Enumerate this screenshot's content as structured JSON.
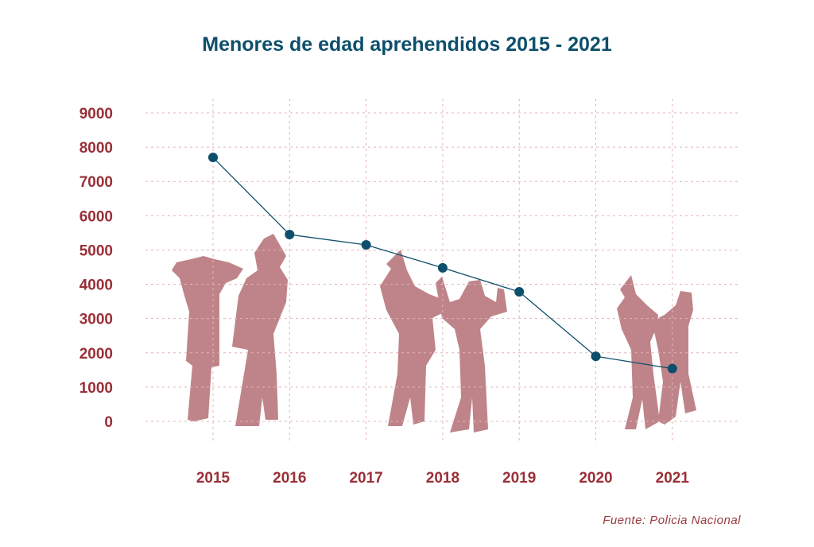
{
  "chart_data": {
    "type": "line",
    "title": "Menores de edad aprehendidos 2015 - 2021",
    "xlabel": "",
    "ylabel": "",
    "categories": [
      "2015",
      "2016",
      "2017",
      "2018",
      "2019",
      "2020",
      "2021"
    ],
    "series": [
      {
        "values": [
          7700,
          5450,
          5150,
          4480,
          3780,
          1900,
          1540
        ]
      }
    ],
    "yticks": [
      "0",
      "1000",
      "2000",
      "3000",
      "4000",
      "5000",
      "6000",
      "7000",
      "8000",
      "9000"
    ],
    "ylim": [
      0,
      9000
    ],
    "grid": true,
    "line_color": "#0d4f6b",
    "grid_color": "#e3b4b8",
    "tick_color": "#9a2f37",
    "silhouette_color": "#bf8489"
  },
  "source": "Fuente: Policia Nacional"
}
